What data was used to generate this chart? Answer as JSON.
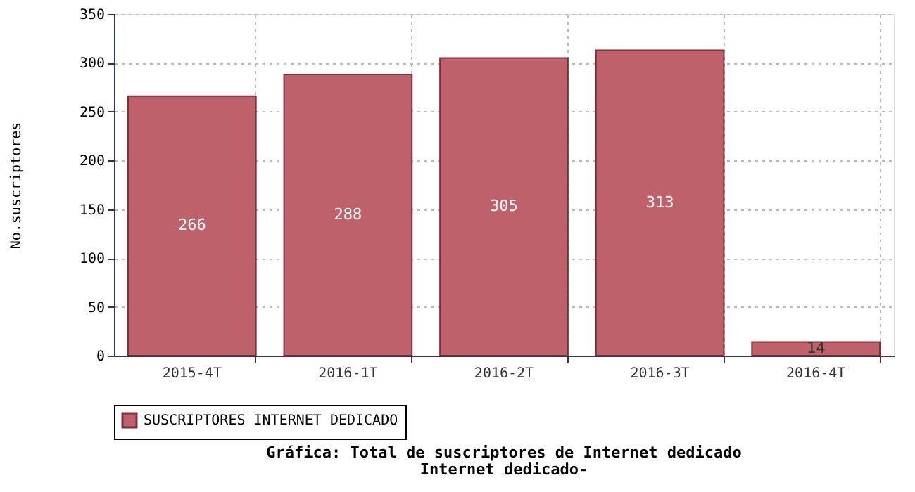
{
  "chart_data": {
    "type": "bar",
    "title": "Gráfica: Total de suscriptores de Internet dedicado",
    "subtitle": "Internet dedicado-",
    "ylabel": "No.suscriptores",
    "categories": [
      "2015-4T",
      "2016-1T",
      "2016-2T",
      "2016-3T",
      "2016-4T"
    ],
    "series": [
      {
        "name": "SUSCRIPTORES INTERNET DEDICADO",
        "color": "#bf616a",
        "values": [
          266,
          288,
          305,
          313,
          14
        ]
      }
    ],
    "ylim": [
      0,
      350
    ],
    "yticks": [
      0,
      50,
      100,
      150,
      200,
      250,
      300,
      350
    ],
    "grid": true,
    "legend": "bottom",
    "data_labels": true
  }
}
